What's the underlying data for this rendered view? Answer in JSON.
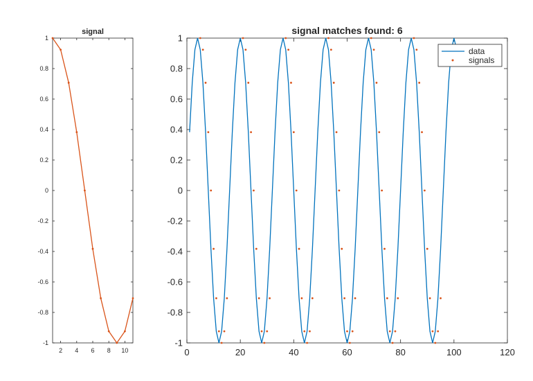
{
  "colors": {
    "data_line": "#0072BD",
    "signal_line": "#D95319",
    "axes": "#262626",
    "background": "#ffffff"
  },
  "chart_data": [
    {
      "type": "line",
      "title": "signal",
      "xlabel": "",
      "ylabel": "",
      "xlim": [
        1,
        11
      ],
      "ylim": [
        -1,
        1
      ],
      "x_ticks": [
        2,
        4,
        6,
        8,
        10
      ],
      "y_ticks": [
        -1,
        -0.8,
        -0.6,
        -0.4,
        -0.2,
        0,
        0.2,
        0.4,
        0.6,
        0.8,
        1
      ],
      "x_tick_labels": [
        "2",
        "4",
        "6",
        "8",
        "10"
      ],
      "y_tick_labels": [
        "-1",
        "-0.8",
        "-0.6",
        "-0.4",
        "-0.2",
        "0",
        "0.2",
        "0.4",
        "0.6",
        "0.8",
        "1"
      ],
      "grid": false,
      "series": [
        {
          "x": [
            1,
            2,
            3,
            4,
            5,
            6,
            7,
            8,
            9,
            10,
            11
          ],
          "y": [
            1,
            0.9239,
            0.7071,
            0.3827,
            0,
            -0.3827,
            -0.7071,
            -0.9239,
            -1,
            -0.9239,
            -0.7071
          ],
          "marker": "dot"
        }
      ]
    },
    {
      "type": "line",
      "title": "signal matches found: 6",
      "xlabel": "",
      "ylabel": "",
      "xlim": [
        0,
        120
      ],
      "ylim": [
        -1,
        1
      ],
      "x_ticks": [
        0,
        20,
        40,
        60,
        80,
        100,
        120
      ],
      "y_ticks": [
        -1,
        -0.8,
        -0.6,
        -0.4,
        -0.2,
        0,
        0.2,
        0.4,
        0.6,
        0.8,
        1
      ],
      "x_tick_labels": [
        "0",
        "20",
        "40",
        "60",
        "80",
        "100",
        "120"
      ],
      "y_tick_labels": [
        "-1",
        "-0.8",
        "-0.6",
        "-0.4",
        "-0.2",
        "0",
        "0.2",
        "0.4",
        "0.6",
        "0.8",
        "1"
      ],
      "grid": false,
      "legend": {
        "position": "top-right",
        "entries": [
          "data",
          "signals"
        ]
      },
      "series": [
        {
          "name": "data",
          "style": "line",
          "function": "sin(2*pi*x/16)",
          "x_range": [
            1,
            101
          ],
          "note": "sampled at each integer x"
        },
        {
          "name": "signals",
          "style": "dots",
          "match_starts": [
            5,
            21,
            37,
            53,
            69,
            85
          ],
          "points_per_match": 11,
          "values": [
            1,
            0.9239,
            0.7071,
            0.3827,
            0,
            -0.3827,
            -0.7071,
            -0.9239,
            -1,
            -0.9239,
            -0.7071
          ]
        }
      ]
    }
  ]
}
